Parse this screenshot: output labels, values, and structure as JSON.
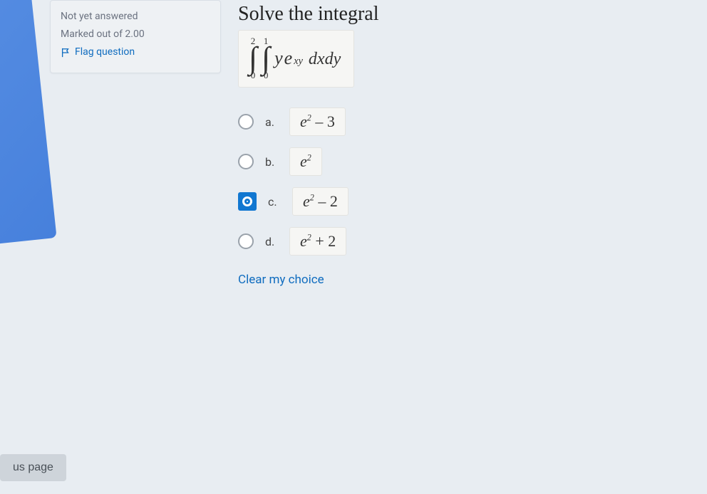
{
  "colors": {
    "bg": "#e8edf2",
    "accent": "#1177d1",
    "link": "#0f6cbf",
    "card_bg": "#eef1f4",
    "card_border": "#d9dfe6",
    "expr_bg": "#f6f6f4",
    "expr_border": "#e3e3e0",
    "radio_border": "#9aa2ab",
    "btn_bg": "#ced4da",
    "btn_text": "#495057"
  },
  "sidebar": {
    "status": "Not yet answered",
    "marks": "Marked out of 2.00",
    "flag": "Flag question"
  },
  "question": {
    "prompt": "Solve the integral",
    "outer_limit_low": "0",
    "outer_limit_high": "2",
    "inner_limit_low": "0",
    "inner_limit_high": "1",
    "integrand_base1": "y",
    "integrand_base2": "e",
    "integrand_exp": "xy",
    "differential": "dxdy"
  },
  "options": [
    {
      "letter": "a.",
      "expr_base": "e",
      "expr_sup": "2",
      "expr_tail": " – 3",
      "selected": false
    },
    {
      "letter": "b.",
      "expr_base": "e",
      "expr_sup": "2",
      "expr_tail": "",
      "selected": false
    },
    {
      "letter": "c.",
      "expr_base": "e",
      "expr_sup": "2",
      "expr_tail": " – 2",
      "selected": true
    },
    {
      "letter": "d.",
      "expr_base": "e",
      "expr_sup": "2",
      "expr_tail": " + 2",
      "selected": false
    }
  ],
  "clear_choice": "Clear my choice",
  "nav_button": "us page"
}
